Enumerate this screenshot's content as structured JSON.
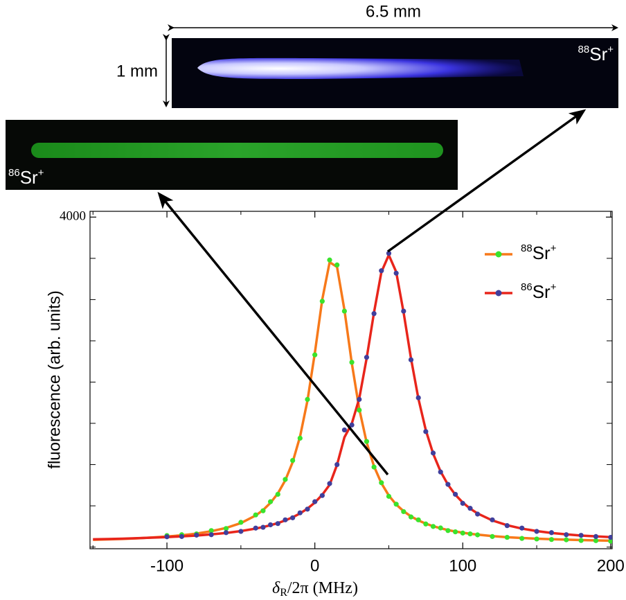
{
  "chart_data": {
    "type": "line",
    "ylabel": "fluorescence (arb. units)",
    "xlabel": {
      "symbol": "δ",
      "subscript": "R",
      "rest": "/2π (MHz)"
    },
    "xlim": [
      -152,
      201
    ],
    "ylim": [
      -20,
      4070
    ],
    "xticks": [
      -100,
      0,
      100,
      200
    ],
    "xminor_ticks": [
      -150,
      -50,
      50,
      150
    ],
    "yticks": [
      4000
    ],
    "yminor_ticks": [
      0,
      500,
      1000,
      1500,
      2000,
      2500,
      3000,
      3500
    ],
    "legend": "upper right",
    "x": [
      -150,
      -140,
      -130,
      -120,
      -110,
      -100,
      -90,
      -80,
      -70,
      -60,
      -50,
      -40,
      -35,
      -30,
      -25,
      -20,
      -15,
      -10,
      -5,
      0,
      5,
      10,
      15,
      20,
      25,
      30,
      35,
      40,
      45,
      50,
      55,
      60,
      65,
      70,
      75,
      80,
      85,
      90,
      95,
      100,
      105,
      110,
      120,
      130,
      140,
      150,
      160,
      170,
      180,
      190,
      200
    ],
    "series": [
      {
        "label": {
          "mass": "88",
          "element": "Sr",
          "charge": "+"
        },
        "color": "#f7791a",
        "point_color": "#3ae32c",
        "values": [
          88,
          93,
          99,
          106,
          116,
          128,
          143,
          164,
          192,
          232,
          291,
          383,
          449,
          536,
          651,
          809,
          1029,
          1340,
          1775,
          2353,
          3000,
          3453,
          3396,
          2875,
          2227,
          1677,
          1269,
          979,
          774,
          625,
          516,
          435,
          372,
          323,
          284,
          253,
          228,
          206,
          189,
          174,
          162,
          151,
          133,
          120,
          110,
          102,
          95,
          90,
          85,
          81,
          78
        ],
        "points": [
          null,
          null,
          null,
          null,
          null,
          140,
          150,
          160,
          200,
          225,
          300,
          390,
          440,
          550,
          640,
          820,
          1050,
          1320,
          1790,
          2330,
          2980,
          3480,
          3420,
          2860,
          2240,
          1660,
          1280,
          970,
          780,
          615,
          520,
          430,
          365,
          330,
          280,
          250,
          232,
          200,
          185,
          170,
          160,
          148,
          128,
          118,
          105,
          98,
          92,
          88,
          80,
          78,
          72
        ]
      },
      {
        "label": {
          "mass": "86",
          "element": "Sr",
          "charge": "+"
        },
        "color": "#e8251b",
        "point_color": "#403f9c",
        "values": [
          94,
          98,
          102,
          108,
          114,
          121,
          130,
          140,
          154,
          171,
          194,
          224,
          243,
          265,
          291,
          323,
          361,
          408,
          466,
          540,
          634,
          756,
          997,
          1331,
          1498,
          1800,
          2287,
          2844,
          3335,
          3540,
          3335,
          2844,
          2287,
          1800,
          1418,
          1131,
          917,
          756,
          634,
          540,
          466,
          408,
          323,
          265,
          224,
          194,
          171,
          154,
          140,
          130,
          121
        ],
        "points": [
          null,
          null,
          null,
          null,
          null,
          125,
          128,
          145,
          150,
          175,
          190,
          230,
          240,
          270,
          285,
          330,
          355,
          415,
          460,
          550,
          625,
          770,
          1000,
          1420,
          1480,
          1790,
          2300,
          2830,
          3350,
          3560,
          3320,
          2860,
          2270,
          1810,
          1400,
          1140,
          910,
          760,
          640,
          530,
          470,
          400,
          330,
          260,
          230,
          190,
          175,
          150,
          142,
          128,
          118
        ]
      }
    ],
    "annotations": {
      "length": "6.5 mm",
      "height": "1 mm",
      "image_top": {
        "mass": "88",
        "element": "Sr",
        "charge": "+"
      },
      "image_bottom": {
        "mass": "86",
        "element": "Sr",
        "charge": "+"
      }
    }
  }
}
